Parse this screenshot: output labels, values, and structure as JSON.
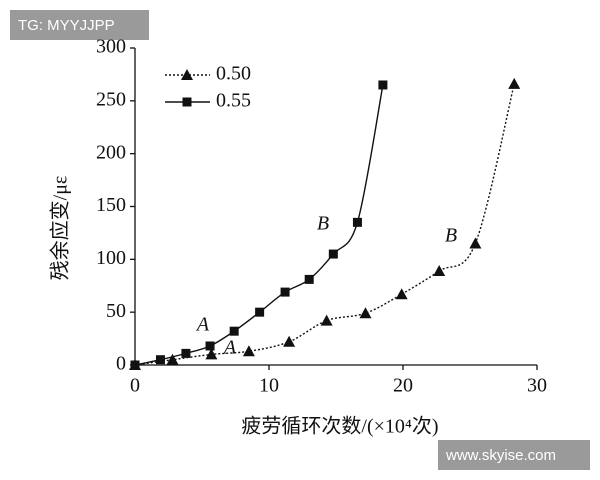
{
  "chart_data": {
    "type": "line",
    "xlabel": "疲劳循环次数/(×10⁴次)",
    "ylabel": "残余应变/με",
    "xlim": [
      0,
      30
    ],
    "xticks": [
      0,
      10,
      20,
      30
    ],
    "ylim": [
      0,
      300
    ],
    "yticks": [
      0,
      50,
      100,
      150,
      200,
      250,
      300
    ],
    "legend": "upper left",
    "series": [
      {
        "name": "0.50",
        "color": "#111111",
        "marker": "triangle",
        "linestyle": "dotted",
        "x": [
          0,
          2.8,
          5.7,
          8.5,
          11.5,
          14.3,
          17.2,
          19.9,
          22.7,
          25.4,
          28.3
        ],
        "values": [
          0,
          5,
          10,
          13,
          22,
          42,
          49,
          67,
          89,
          115,
          266
        ]
      },
      {
        "name": "0.55",
        "color": "#111111",
        "marker": "square",
        "linestyle": "solid",
        "x": [
          0,
          1.9,
          3.8,
          5.6,
          7.4,
          9.3,
          11.2,
          13,
          14.8,
          16.6,
          18.5
        ],
        "values": [
          0,
          5,
          11,
          18,
          32,
          50,
          69,
          81,
          105,
          135,
          265
        ]
      }
    ],
    "annotations": [
      "A",
      "A",
      "B",
      "B"
    ],
    "watermarks": [
      "TG: MYYJJPP",
      "www.skyise.com"
    ]
  }
}
